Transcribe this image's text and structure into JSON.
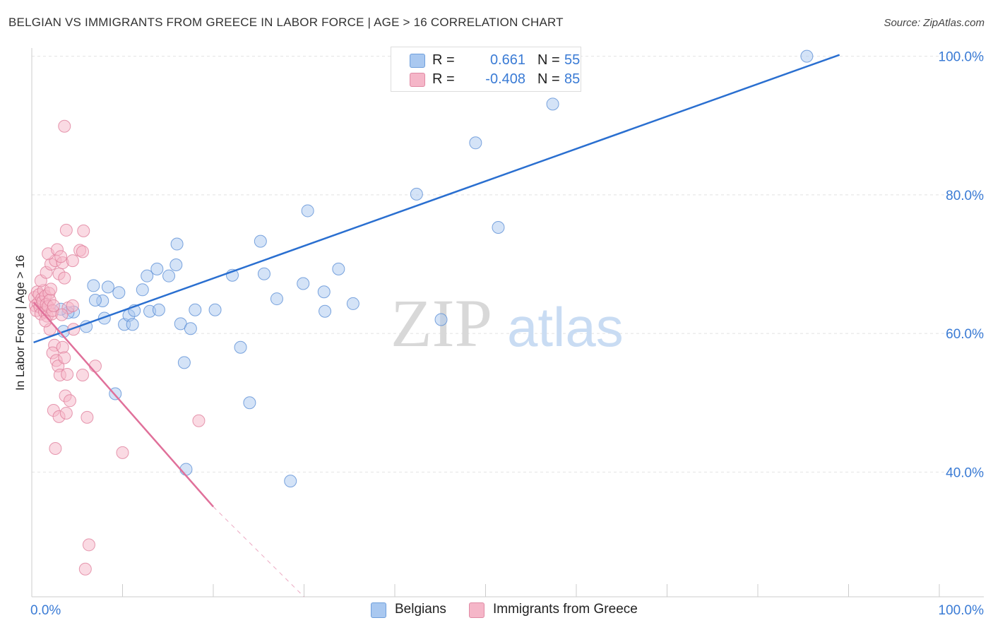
{
  "header": {
    "title": "BELGIAN VS IMMIGRANTS FROM GREECE IN LABOR FORCE | AGE > 16 CORRELATION CHART",
    "source": "Source: ZipAtlas.com"
  },
  "watermark": {
    "zip": "ZIP",
    "atlas": "atlas"
  },
  "legend": {
    "rows": [
      {
        "r_label": "R =",
        "r_value": "0.661",
        "n_label": "N =",
        "n_value": "55",
        "color": "#a9c8f0"
      },
      {
        "r_label": "R =",
        "r_value": "-0.408",
        "n_label": "N =",
        "n_value": "85",
        "color": "#f5b6c8"
      }
    ],
    "bottom": [
      {
        "label": "Belgians",
        "color": "#a9c8f0"
      },
      {
        "label": "Immigrants from Greece",
        "color": "#f5b6c8"
      }
    ]
  },
  "chart_data": {
    "type": "scatter",
    "title": "BELGIAN VS IMMIGRANTS FROM GREECE IN LABOR FORCE | AGE > 16 CORRELATION CHART",
    "xlabel": "",
    "ylabel": "In Labor Force | Age > 16",
    "xlim": [
      0,
      100
    ],
    "ylim": [
      22,
      102
    ],
    "x_tick_labels": [
      "0.0%",
      "100.0%"
    ],
    "y_ticks": [
      40,
      60,
      80,
      100
    ],
    "y_tick_labels": [
      "40.0%",
      "60.0%",
      "80.0%",
      "100.0%"
    ],
    "series": [
      {
        "name": "Belgians",
        "color": "#a9c8f0",
        "stroke": "#5b8fd6",
        "trend": {
          "x": [
            0.2,
            89
          ],
          "y": [
            58.7,
            100.2
          ],
          "color": "#2a6fd0"
        },
        "points": [
          [
            4.6,
            63.1
          ],
          [
            3.5,
            60.3
          ],
          [
            4.0,
            63.0
          ],
          [
            6.8,
            66.9
          ],
          [
            7.8,
            64.7
          ],
          [
            7.0,
            64.8
          ],
          [
            8.4,
            66.7
          ],
          [
            10.2,
            61.3
          ],
          [
            10.7,
            62.6
          ],
          [
            11.1,
            61.3
          ],
          [
            9.6,
            65.9
          ],
          [
            11.3,
            63.3
          ],
          [
            12.2,
            66.3
          ],
          [
            13.0,
            63.2
          ],
          [
            12.7,
            68.3
          ],
          [
            13.8,
            69.3
          ],
          [
            15.1,
            68.3
          ],
          [
            15.9,
            69.9
          ],
          [
            16.4,
            61.4
          ],
          [
            17.5,
            60.7
          ],
          [
            16.0,
            72.9
          ],
          [
            14.0,
            63.4
          ],
          [
            18.0,
            63.4
          ],
          [
            16.8,
            55.8
          ],
          [
            20.2,
            63.4
          ],
          [
            22.1,
            68.4
          ],
          [
            23.0,
            58.0
          ],
          [
            24.0,
            50.0
          ],
          [
            25.2,
            73.3
          ],
          [
            25.6,
            68.6
          ],
          [
            27.0,
            65.0
          ],
          [
            28.5,
            38.7
          ],
          [
            29.9,
            67.2
          ],
          [
            30.4,
            77.7
          ],
          [
            32.3,
            63.2
          ],
          [
            32.2,
            66.0
          ],
          [
            33.8,
            69.3
          ],
          [
            35.4,
            64.3
          ],
          [
            42.4,
            80.1
          ],
          [
            45.1,
            62.0
          ],
          [
            48.9,
            87.5
          ],
          [
            51.4,
            75.3
          ],
          [
            57.4,
            93.1
          ],
          [
            85.4,
            100.0
          ],
          [
            9.2,
            51.3
          ],
          [
            17.0,
            40.4
          ],
          [
            6.0,
            61.0
          ],
          [
            8.0,
            62.2
          ],
          [
            3.2,
            63.5
          ]
        ]
      },
      {
        "name": "Immigrants from Greece",
        "color": "#f5b6c8",
        "stroke": "#e0809c",
        "trend": {
          "x": [
            0.2,
            20
          ],
          "y": [
            64.5,
            35.0
          ],
          "color": "#e0709a",
          "dashed_extension": {
            "x": [
              20,
              30
            ],
            "y": [
              35.0,
              22.0
            ]
          }
        },
        "points": [
          [
            0.3,
            65.2
          ],
          [
            0.4,
            64.0
          ],
          [
            0.5,
            63.3
          ],
          [
            0.6,
            66.0
          ],
          [
            0.7,
            64.4
          ],
          [
            0.8,
            65.6
          ],
          [
            0.9,
            63.8
          ],
          [
            1.0,
            62.8
          ],
          [
            1.1,
            65.0
          ],
          [
            1.2,
            64.6
          ],
          [
            1.3,
            66.2
          ],
          [
            1.4,
            63.1
          ],
          [
            1.5,
            65.4
          ],
          [
            1.6,
            64.2
          ],
          [
            1.7,
            62.5
          ],
          [
            1.8,
            63.9
          ],
          [
            1.9,
            65.8
          ],
          [
            2.0,
            64.8
          ],
          [
            2.1,
            66.4
          ],
          [
            2.2,
            62.8
          ],
          [
            2.3,
            63.3
          ],
          [
            2.4,
            64.0
          ],
          [
            1.0,
            67.6
          ],
          [
            1.6,
            68.8
          ],
          [
            2.1,
            70.0
          ],
          [
            2.6,
            70.5
          ],
          [
            1.8,
            71.5
          ],
          [
            3.0,
            68.6
          ],
          [
            3.4,
            70.2
          ],
          [
            2.8,
            72.1
          ],
          [
            3.2,
            71.1
          ],
          [
            3.8,
            74.9
          ],
          [
            3.6,
            68.0
          ],
          [
            4.5,
            70.5
          ],
          [
            5.3,
            72.0
          ],
          [
            5.6,
            71.8
          ],
          [
            5.7,
            74.8
          ],
          [
            2.5,
            58.3
          ],
          [
            2.3,
            57.2
          ],
          [
            2.7,
            56.1
          ],
          [
            2.9,
            55.3
          ],
          [
            3.1,
            54.0
          ],
          [
            3.4,
            58.0
          ],
          [
            3.9,
            54.1
          ],
          [
            3.7,
            51.0
          ],
          [
            4.2,
            50.3
          ],
          [
            4.6,
            60.6
          ],
          [
            2.4,
            48.9
          ],
          [
            3.0,
            48.0
          ],
          [
            3.8,
            48.5
          ],
          [
            2.6,
            43.4
          ],
          [
            3.6,
            56.5
          ],
          [
            5.6,
            54.0
          ],
          [
            6.1,
            47.9
          ],
          [
            7.0,
            55.3
          ],
          [
            10.0,
            42.8
          ],
          [
            18.4,
            47.4
          ],
          [
            3.6,
            89.9
          ],
          [
            6.3,
            29.5
          ],
          [
            5.9,
            26.0
          ],
          [
            2.0,
            60.6
          ],
          [
            1.5,
            61.8
          ],
          [
            4.0,
            63.7
          ],
          [
            4.5,
            64.0
          ],
          [
            3.3,
            62.7
          ]
        ]
      }
    ]
  }
}
